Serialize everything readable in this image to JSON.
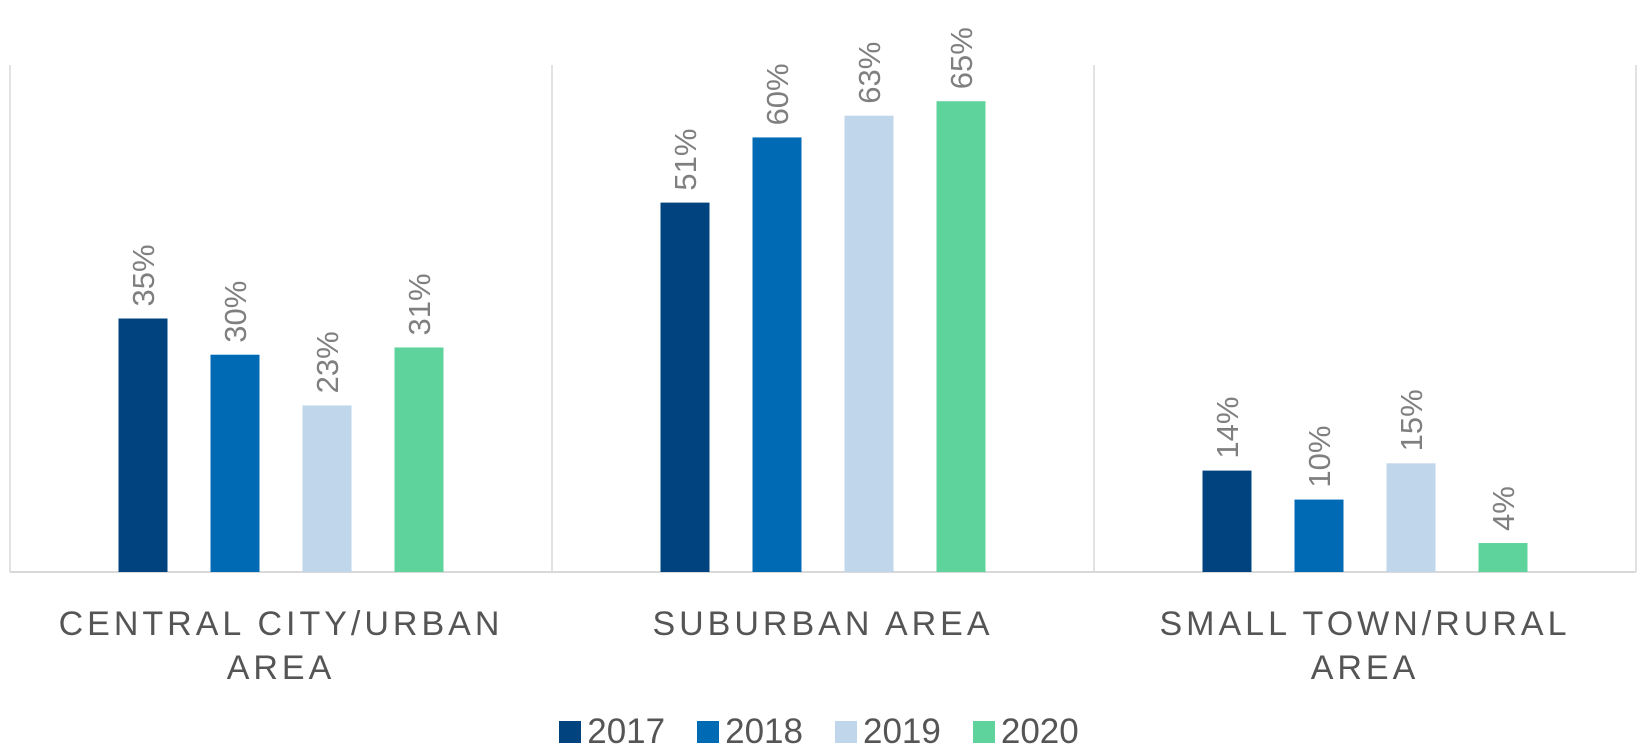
{
  "chart_data": {
    "type": "bar",
    "categories": [
      "CENTRAL CITY/URBAN AREA",
      "SUBURBAN AREA",
      "SMALL TOWN/RURAL AREA"
    ],
    "series": [
      {
        "name": "2017",
        "color": "#00437f",
        "values": [
          35,
          51,
          14
        ],
        "value_labels": [
          "35%",
          "51%",
          "14%"
        ]
      },
      {
        "name": "2018",
        "color": "#006ab4",
        "values": [
          30,
          60,
          10
        ],
        "value_labels": [
          "30%",
          "60%",
          "10%"
        ]
      },
      {
        "name": "2019",
        "color": "#bfd6eb",
        "values": [
          23,
          63,
          15
        ],
        "value_labels": [
          "23%",
          "63%",
          "15%"
        ]
      },
      {
        "name": "2020",
        "color": "#5fd39c",
        "values": [
          31,
          65,
          4
        ],
        "value_labels": [
          "31%",
          "65%",
          "4%"
        ]
      }
    ],
    "ylim": [
      0,
      70
    ],
    "legend": "bottom"
  }
}
